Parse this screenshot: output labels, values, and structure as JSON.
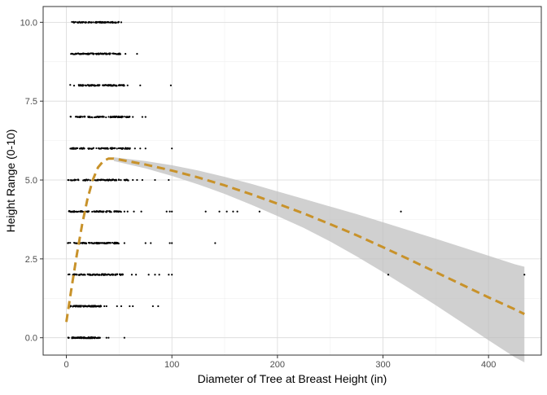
{
  "chart_data": {
    "type": "scatter",
    "xlabel": "Diameter of Tree at Breast Height (in)",
    "ylabel": "Height Range (0-10)",
    "xlim": [
      -22,
      450
    ],
    "ylim": [
      -0.55,
      10.5
    ],
    "x_ticks": [
      0,
      100,
      200,
      300,
      400
    ],
    "x_tick_labels": [
      "0",
      "100",
      "200",
      "300",
      "400"
    ],
    "y_ticks": [
      0,
      2.5,
      5,
      7.5,
      10
    ],
    "y_tick_labels": [
      "0.0",
      "2.5",
      "5.0",
      "7.5",
      "10.0"
    ],
    "grid": true,
    "legend": "none",
    "colors": {
      "points": "#000000",
      "fit_line": "#c8922a",
      "ribbon": "#bebebe",
      "panel_border": "#333333"
    },
    "point_bands": [
      {
        "y": 0,
        "x_min": 1,
        "x_max": 32
      },
      {
        "y": 1,
        "x_min": 1,
        "x_max": 33
      },
      {
        "y": 2,
        "x_min": 1,
        "x_max": 55
      },
      {
        "y": 3,
        "x_min": 1,
        "x_max": 50
      },
      {
        "y": 4,
        "x_min": 1,
        "x_max": 52
      },
      {
        "y": 5,
        "x_min": 1,
        "x_max": 60
      },
      {
        "y": 6,
        "x_min": 1,
        "x_max": 62
      },
      {
        "y": 7,
        "x_min": 2,
        "x_max": 60
      },
      {
        "y": 8,
        "x_min": 3,
        "x_max": 55
      },
      {
        "y": 9,
        "x_min": 3,
        "x_max": 52
      },
      {
        "y": 10,
        "x_min": 5,
        "x_max": 50
      }
    ],
    "outlier_points": [
      {
        "x": 38,
        "y": 0
      },
      {
        "x": 40,
        "y": 0
      },
      {
        "x": 55,
        "y": 0
      },
      {
        "x": 36,
        "y": 1
      },
      {
        "x": 38,
        "y": 1
      },
      {
        "x": 48,
        "y": 1
      },
      {
        "x": 52,
        "y": 1
      },
      {
        "x": 60,
        "y": 1
      },
      {
        "x": 63,
        "y": 1
      },
      {
        "x": 82,
        "y": 1
      },
      {
        "x": 87,
        "y": 1
      },
      {
        "x": 62,
        "y": 2
      },
      {
        "x": 66,
        "y": 2
      },
      {
        "x": 78,
        "y": 2
      },
      {
        "x": 84,
        "y": 2
      },
      {
        "x": 88,
        "y": 2
      },
      {
        "x": 97,
        "y": 2
      },
      {
        "x": 100,
        "y": 2
      },
      {
        "x": 305,
        "y": 2
      },
      {
        "x": 434,
        "y": 2
      },
      {
        "x": 55,
        "y": 3
      },
      {
        "x": 75,
        "y": 3
      },
      {
        "x": 80,
        "y": 3
      },
      {
        "x": 98,
        "y": 3
      },
      {
        "x": 100,
        "y": 3
      },
      {
        "x": 141,
        "y": 3
      },
      {
        "x": 55,
        "y": 4
      },
      {
        "x": 58,
        "y": 4
      },
      {
        "x": 64,
        "y": 4
      },
      {
        "x": 71,
        "y": 4
      },
      {
        "x": 95,
        "y": 4
      },
      {
        "x": 98,
        "y": 4
      },
      {
        "x": 100,
        "y": 4
      },
      {
        "x": 132,
        "y": 4
      },
      {
        "x": 145,
        "y": 4
      },
      {
        "x": 152,
        "y": 4
      },
      {
        "x": 158,
        "y": 4
      },
      {
        "x": 162,
        "y": 4
      },
      {
        "x": 183,
        "y": 4
      },
      {
        "x": 317,
        "y": 4
      },
      {
        "x": 63,
        "y": 5
      },
      {
        "x": 67,
        "y": 5
      },
      {
        "x": 72,
        "y": 5
      },
      {
        "x": 84,
        "y": 5
      },
      {
        "x": 97,
        "y": 5
      },
      {
        "x": 65,
        "y": 6
      },
      {
        "x": 70,
        "y": 6
      },
      {
        "x": 75,
        "y": 6
      },
      {
        "x": 100,
        "y": 6
      },
      {
        "x": 63,
        "y": 7
      },
      {
        "x": 72,
        "y": 7
      },
      {
        "x": 75,
        "y": 7
      },
      {
        "x": 58,
        "y": 8
      },
      {
        "x": 70,
        "y": 8
      },
      {
        "x": 99,
        "y": 8
      },
      {
        "x": 56,
        "y": 9
      },
      {
        "x": 67,
        "y": 9
      },
      {
        "x": 52,
        "y": 10
      }
    ],
    "fit_line": {
      "style": "dashed",
      "x": [
        0,
        5,
        10,
        15,
        20,
        25,
        30,
        35,
        40,
        45,
        50,
        75,
        100,
        125,
        150,
        175,
        200,
        225,
        250,
        275,
        300,
        325,
        350,
        375,
        400,
        425,
        434
      ],
      "y": [
        0.5,
        1.6,
        2.65,
        3.6,
        4.4,
        5.0,
        5.4,
        5.6,
        5.68,
        5.68,
        5.65,
        5.49,
        5.3,
        5.08,
        4.83,
        4.55,
        4.25,
        3.94,
        3.6,
        3.25,
        2.87,
        2.48,
        2.08,
        1.68,
        1.28,
        0.9,
        0.75
      ]
    },
    "confidence_band": {
      "x": [
        45,
        75,
        100,
        125,
        150,
        175,
        200,
        225,
        250,
        275,
        300,
        325,
        350,
        375,
        400,
        425,
        434
      ],
      "upper": [
        5.72,
        5.6,
        5.47,
        5.3,
        5.1,
        4.88,
        4.64,
        4.4,
        4.16,
        3.92,
        3.66,
        3.4,
        3.14,
        2.87,
        2.6,
        2.33,
        2.25
      ],
      "lower": [
        5.6,
        5.37,
        5.13,
        4.86,
        4.56,
        4.22,
        3.86,
        3.48,
        3.05,
        2.58,
        2.08,
        1.56,
        1.03,
        0.48,
        -0.08,
        -0.62,
        -0.78
      ]
    }
  }
}
